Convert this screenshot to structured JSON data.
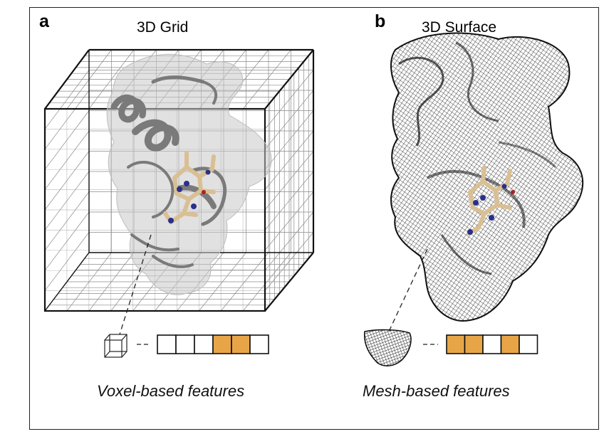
{
  "panel_a": {
    "letter": "a",
    "title": "3D Grid",
    "caption": "Voxel-based features",
    "feature_vector": [
      0,
      0,
      0,
      1,
      1,
      0
    ]
  },
  "panel_b": {
    "letter": "b",
    "title": "3D Surface",
    "caption": "Mesh-based features",
    "feature_vector": [
      1,
      1,
      0,
      1,
      0
    ]
  },
  "colors": {
    "feature_on": "#e8a548",
    "feature_off": "#ffffff",
    "protein_surface": "#c9c9c9",
    "protein_ribbon": "#7a7a7a",
    "ligand_carbon": "#d9bf93",
    "ligand_nitrogen": "#2a2f8c",
    "mesh": "#1a1a1a"
  }
}
